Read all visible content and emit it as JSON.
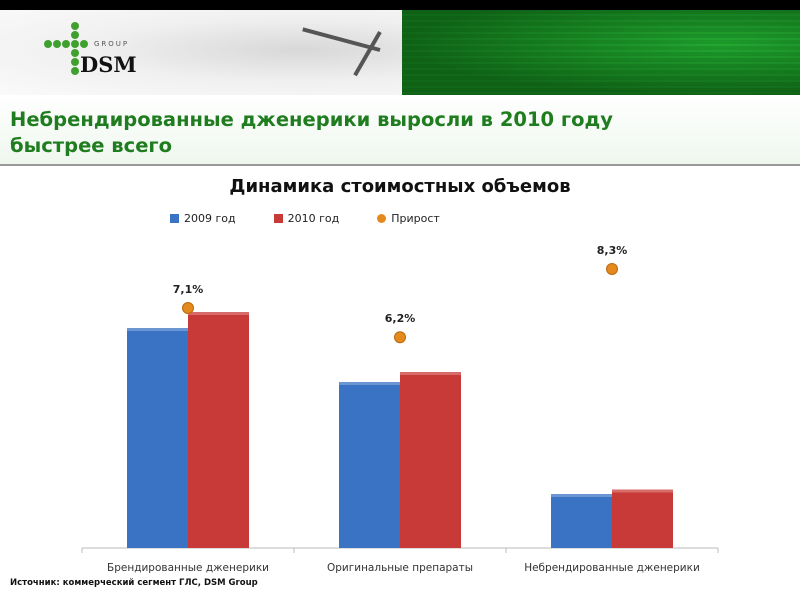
{
  "header": {
    "logo_group": "GROUP",
    "logo_name": "DSM",
    "title": "Небрендированные дженерики выросли в 2010 году быстрее всего"
  },
  "footer": {
    "source": "Источник: коммерческий сегмент ГЛС, DSM Group"
  },
  "chart_data": {
    "type": "bar",
    "title": "Динамика стоимостных объемов",
    "categories": [
      "Брендированные дженерики",
      "Оригинальные препараты",
      "Небрендированные дженерики"
    ],
    "series": [
      {
        "name": "2009 год",
        "values": [
          220,
          166,
          54
        ],
        "color": "#3b73c4"
      },
      {
        "name": "2010 год",
        "values": [
          236,
          176,
          58.5
        ],
        "color": "#c83a38"
      },
      {
        "name": "Прирост",
        "type": "scatter",
        "values": [
          7.1,
          6.2,
          8.3
        ],
        "labels": [
          "7,1%",
          "6,2%",
          "8,3%"
        ],
        "color": "#e48a1c"
      }
    ],
    "ylim": [
      0,
      308
    ],
    "y2lim": [
      -0.28,
      9.19
    ],
    "yaxis_visible": false,
    "grid": false,
    "legend": "top"
  }
}
